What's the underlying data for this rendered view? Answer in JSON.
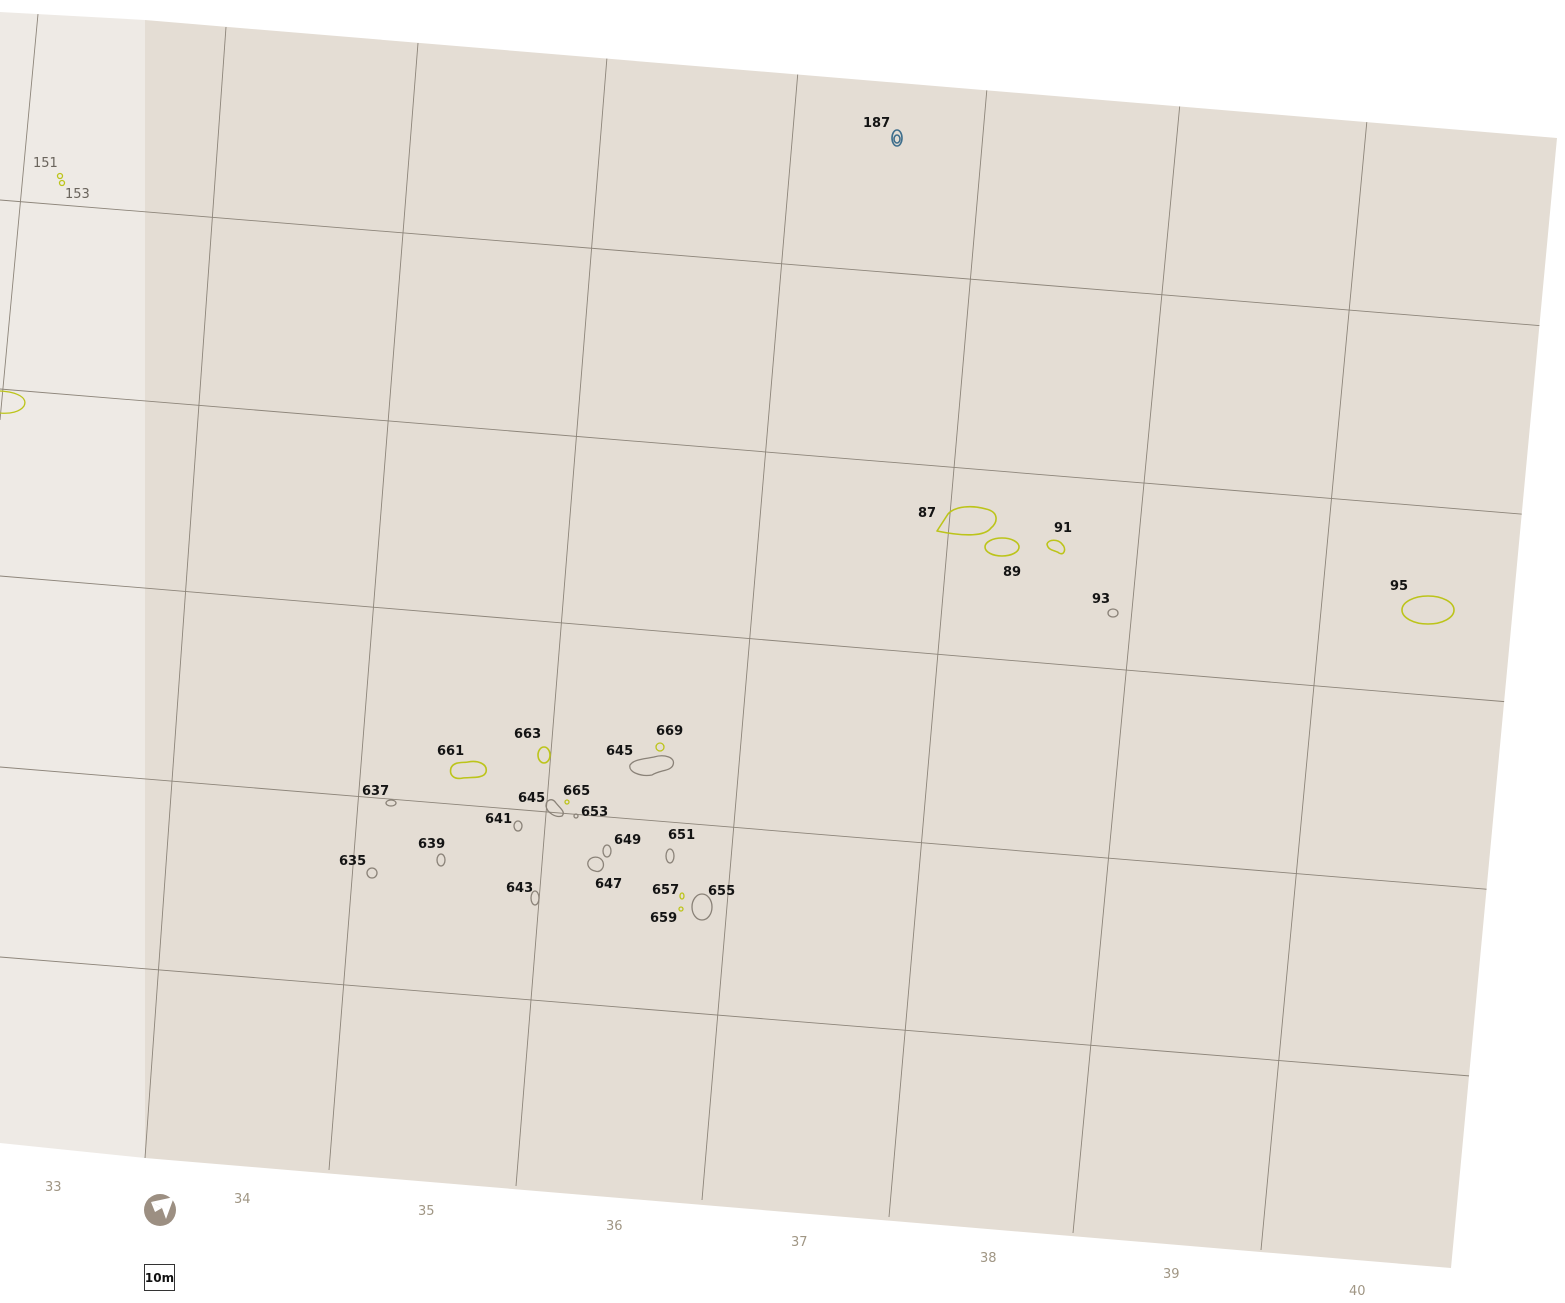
{
  "colors": {
    "background": "#ffffff",
    "plan_fill": "#e4ddd4",
    "faded_fill": "#eeeae5",
    "grid": "#8d857a",
    "feature_grey": "#8a8278",
    "feature_yellow": "#bcc41a",
    "feature_blue": "#3e6e8c",
    "axis_label": "#a09684",
    "compass": "#9c8f82"
  },
  "scale_bar": {
    "label": "10m"
  },
  "compass": {
    "icon": "north-arrow-icon"
  },
  "axis_labels": [
    "33",
    "34",
    "35",
    "36",
    "37",
    "38",
    "39",
    "40"
  ],
  "features": [
    {
      "id": "151",
      "label": "151",
      "color": "yellow",
      "faded": true
    },
    {
      "id": "153",
      "label": "153",
      "color": "yellow",
      "faded": true
    },
    {
      "id": "187",
      "label": "187",
      "color": "blue"
    },
    {
      "id": "87",
      "label": "87",
      "color": "yellow"
    },
    {
      "id": "89",
      "label": "89",
      "color": "yellow"
    },
    {
      "id": "91",
      "label": "91",
      "color": "yellow"
    },
    {
      "id": "93",
      "label": "93",
      "color": "grey"
    },
    {
      "id": "95",
      "label": "95",
      "color": "yellow"
    },
    {
      "id": "661",
      "label": "661",
      "color": "yellow"
    },
    {
      "id": "663",
      "label": "663",
      "color": "yellow"
    },
    {
      "id": "645a",
      "label": "645",
      "color": "grey"
    },
    {
      "id": "669",
      "label": "669",
      "color": "yellow"
    },
    {
      "id": "637",
      "label": "637",
      "color": "grey"
    },
    {
      "id": "645b",
      "label": "645",
      "color": "grey"
    },
    {
      "id": "665",
      "label": "665",
      "color": "yellow"
    },
    {
      "id": "653",
      "label": "653",
      "color": "grey"
    },
    {
      "id": "641",
      "label": "641",
      "color": "grey"
    },
    {
      "id": "639",
      "label": "639",
      "color": "grey"
    },
    {
      "id": "649",
      "label": "649",
      "color": "grey"
    },
    {
      "id": "651",
      "label": "651",
      "color": "grey"
    },
    {
      "id": "635",
      "label": "635",
      "color": "grey"
    },
    {
      "id": "643",
      "label": "643",
      "color": "grey"
    },
    {
      "id": "647",
      "label": "647",
      "color": "grey"
    },
    {
      "id": "657",
      "label": "657",
      "color": "yellow"
    },
    {
      "id": "655",
      "label": "655",
      "color": "grey"
    },
    {
      "id": "659",
      "label": "659",
      "color": "yellow"
    }
  ]
}
